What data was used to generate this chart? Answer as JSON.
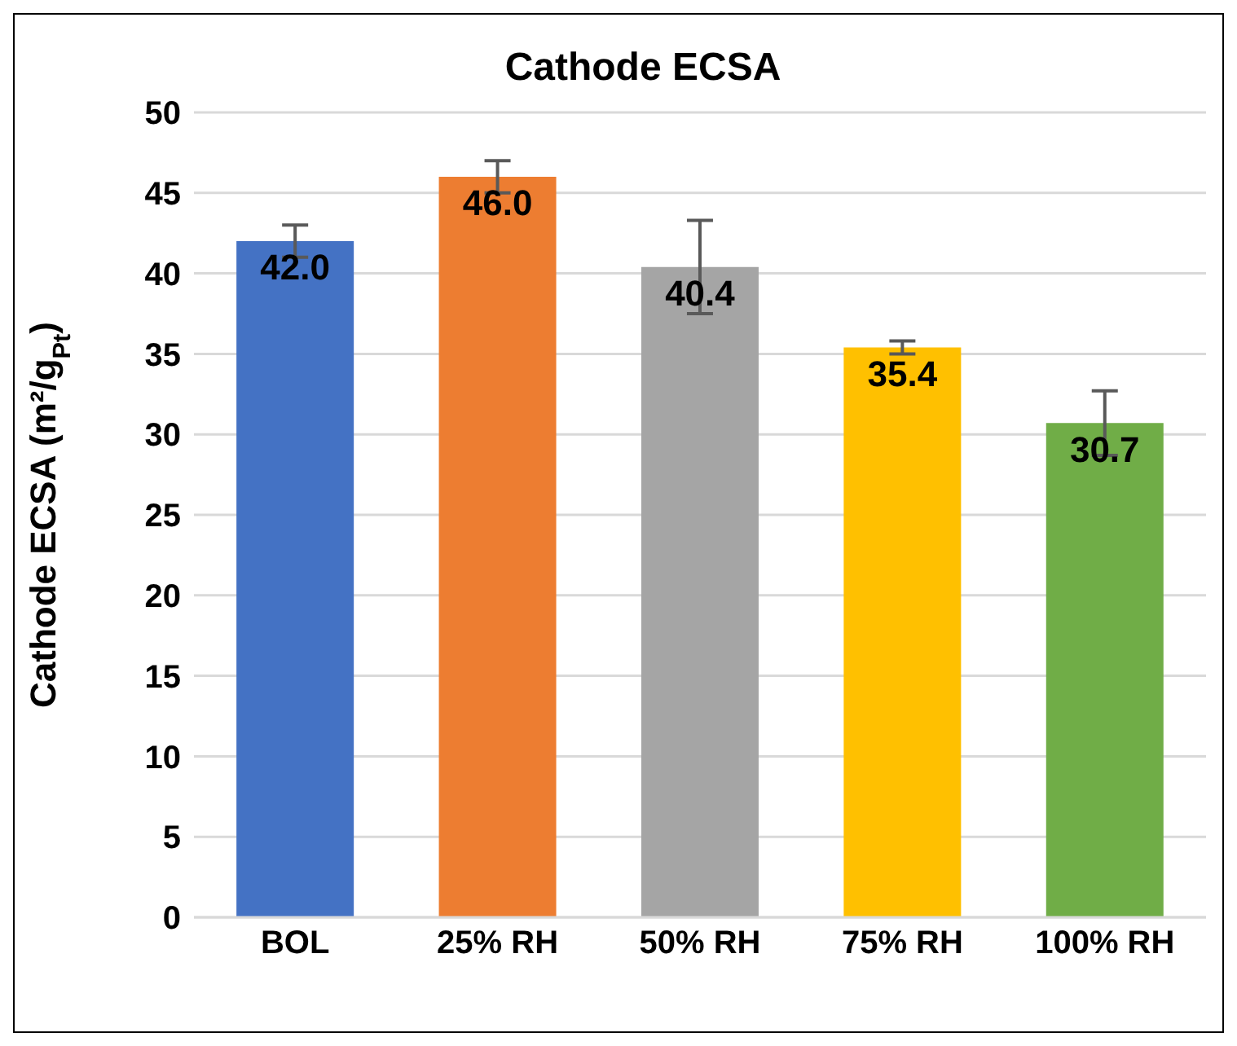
{
  "chart_data": {
    "type": "bar",
    "title": "Cathode ECSA",
    "ylabel": "Cathode ECSA (m²/g$_{Pt}$)",
    "categories": [
      "BOL",
      "25% RH",
      "50% RH",
      "75% RH",
      "100% RH"
    ],
    "values": [
      42.0,
      46.0,
      40.4,
      35.4,
      30.7
    ],
    "colors": [
      "#4472c4",
      "#ed7d31",
      "#a5a5a5",
      "#ffc000",
      "#70ad47"
    ],
    "errors": [
      1.0,
      1.0,
      2.9,
      0.4,
      2.0
    ],
    "value_labels": [
      "42.0",
      "46.0",
      "40.4",
      "35.4",
      "30.7"
    ],
    "ylim": [
      0,
      50
    ],
    "yticks": [
      0,
      5,
      10,
      15,
      20,
      25,
      30,
      35,
      40,
      45,
      50
    ],
    "grid": "y",
    "legend": false
  }
}
